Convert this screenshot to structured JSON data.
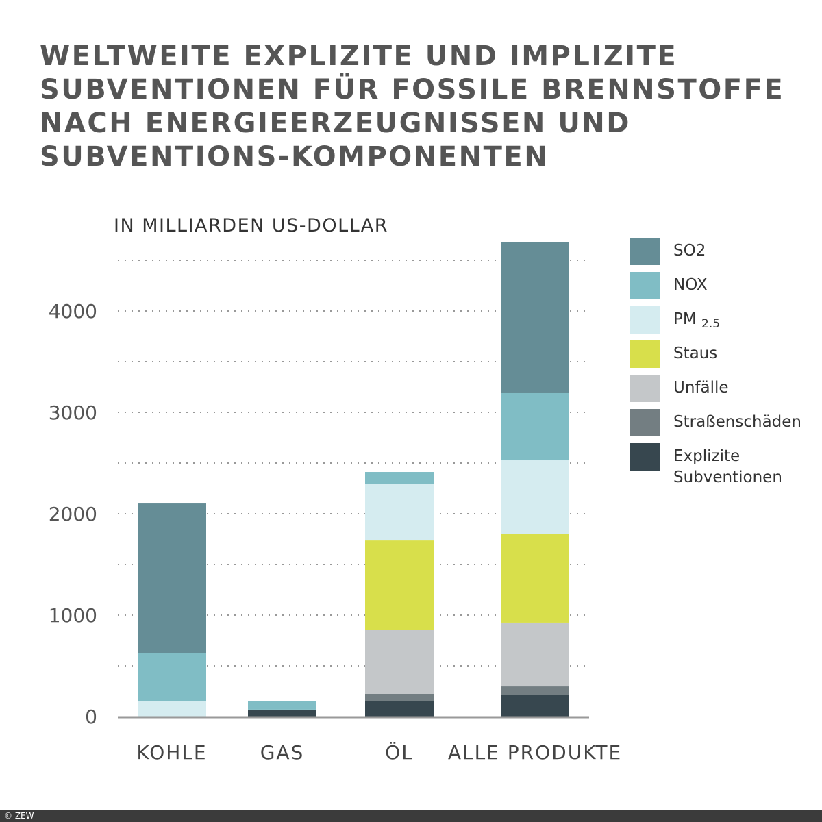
{
  "chart_data": {
    "type": "bar",
    "stacked": true,
    "title": "WELTWEITE EXPLIZITE UND IMPLIZITE SUBVENTIONEN FÜR FOSSILE BRENNSTOFFE NACH ENERGIEERZEUGNISSEN UND SUBVENTIONS-KOMPONENTEN",
    "ylabel": "IN MILLIARDEN US-DOLLAR",
    "xlabel": "",
    "ylim": [
      0,
      4500
    ],
    "yticks": [
      0,
      1000,
      2000,
      3000,
      4000
    ],
    "grid": true,
    "legend_position": "right",
    "categories": [
      "KOHLE",
      "GAS",
      "ÖL",
      "ALLE PRODUKTE"
    ],
    "series": [
      {
        "name": "Explizite Subventionen",
        "color": "#37474f",
        "values": [
          0,
          61,
          149,
          216
        ]
      },
      {
        "name": "Straßenschäden",
        "color": "#737e82",
        "values": [
          0,
          0,
          74,
          81
        ]
      },
      {
        "name": "Unfälle",
        "color": "#c4c7c9",
        "values": [
          0,
          0,
          635,
          629
        ]
      },
      {
        "name": "Staus",
        "color": "#d8df4b",
        "values": [
          0,
          0,
          878,
          878
        ]
      },
      {
        "name": "PM 2.5",
        "color": "#d5ecf0",
        "values": [
          155,
          7,
          555,
          723
        ]
      },
      {
        "name": "NOX",
        "color": "#80bdc5",
        "values": [
          473,
          87,
          121,
          669
        ]
      },
      {
        "name": "SO2",
        "color": "#658d96",
        "values": [
          1473,
          0,
          0,
          1486
        ]
      }
    ],
    "legend_order": [
      "SO2",
      "NOX",
      "PM 2.5",
      "Staus",
      "Unfälle",
      "Straßenschäden",
      "Explizite Subventionen"
    ]
  },
  "footer": "© ZEW"
}
